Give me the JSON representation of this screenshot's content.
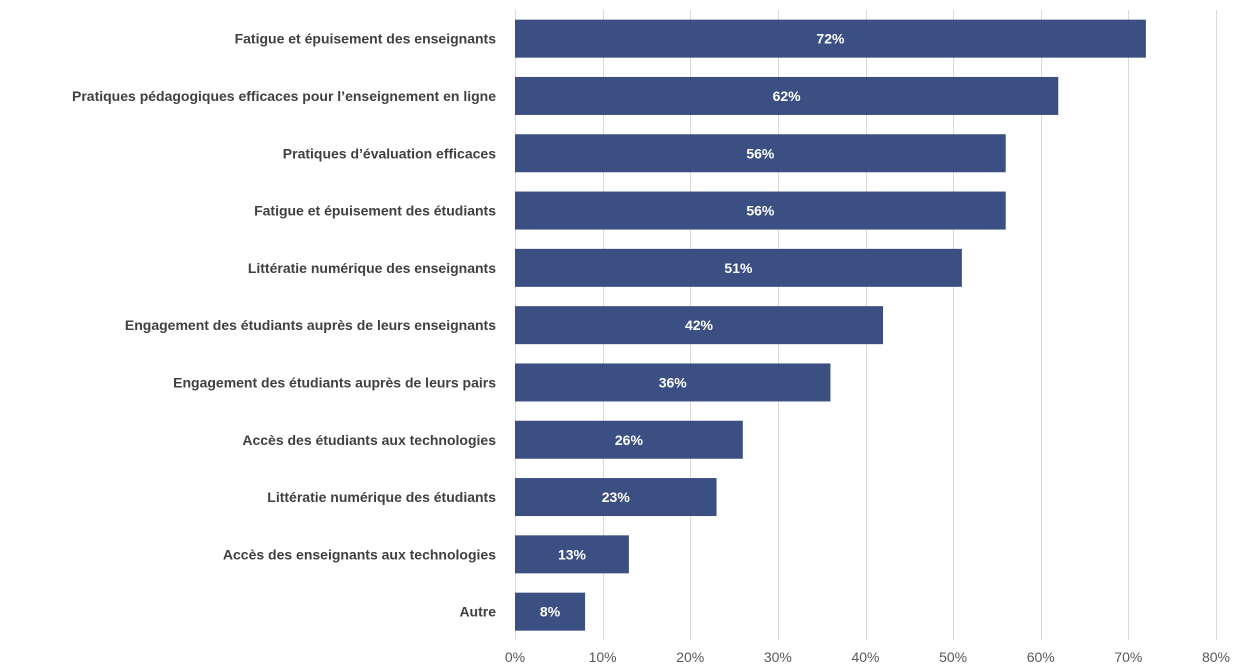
{
  "chart_data": {
    "type": "bar",
    "orientation": "horizontal",
    "title": "",
    "xlabel": "",
    "ylabel": "",
    "categories": [
      "Fatigue et épuisement des enseignants",
      "Pratiques pédagogiques efficaces pour l’enseignement en ligne",
      "Pratiques d’évaluation efficaces",
      "Fatigue et épuisement des étudiants",
      "Littératie numérique des enseignants",
      "Engagement des étudiants auprès de leurs enseignants",
      "Engagement des étudiants auprès de leurs pairs",
      "Accès des étudiants aux technologies",
      "Littératie numérique des étudiants",
      "Accès des enseignants aux technologies",
      "Autre"
    ],
    "values": [
      72,
      62,
      56,
      56,
      51,
      42,
      36,
      26,
      23,
      13,
      8
    ],
    "data_labels": [
      "72%",
      "62%",
      "56%",
      "56%",
      "51%",
      "42%",
      "36%",
      "26%",
      "23%",
      "13%",
      "8%"
    ],
    "xlim": [
      0,
      80
    ],
    "x_ticks": [
      "0%",
      "10%",
      "20%",
      "30%",
      "40%",
      "50%",
      "60%",
      "70%",
      "80%"
    ],
    "grid": true,
    "legend": "none",
    "bar_color": "#3b4f82",
    "gridline_color": "#d9d9d9"
  }
}
